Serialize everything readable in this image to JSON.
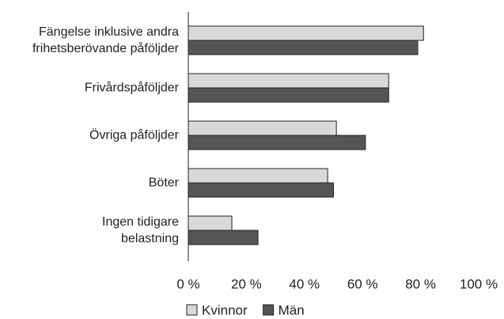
{
  "chart_data": {
    "type": "hbar",
    "categories": [
      "Fängelse inklusive andra\nfrihetsberövande påföljder",
      "Frivårdspåföljder",
      "Övriga påföljder",
      "Böter",
      "Ingen tidigare\nbelastning"
    ],
    "series": [
      {
        "name": "Kvinnor",
        "color": "#d9d9d9",
        "values": [
          81,
          69,
          51,
          48,
          15
        ]
      },
      {
        "name": "Män",
        "color": "#555555",
        "values": [
          79,
          69,
          61,
          50,
          24
        ]
      }
    ],
    "xlim": [
      0,
      100
    ],
    "xticks": [
      {
        "value": 0,
        "label": "0 %"
      },
      {
        "value": 20,
        "label": "20 %"
      },
      {
        "value": 40,
        "label": "40 %"
      },
      {
        "value": 60,
        "label": "60 %"
      },
      {
        "value": 80,
        "label": "80 %"
      },
      {
        "value": 100,
        "label": "100 %"
      }
    ],
    "grid": false
  }
}
